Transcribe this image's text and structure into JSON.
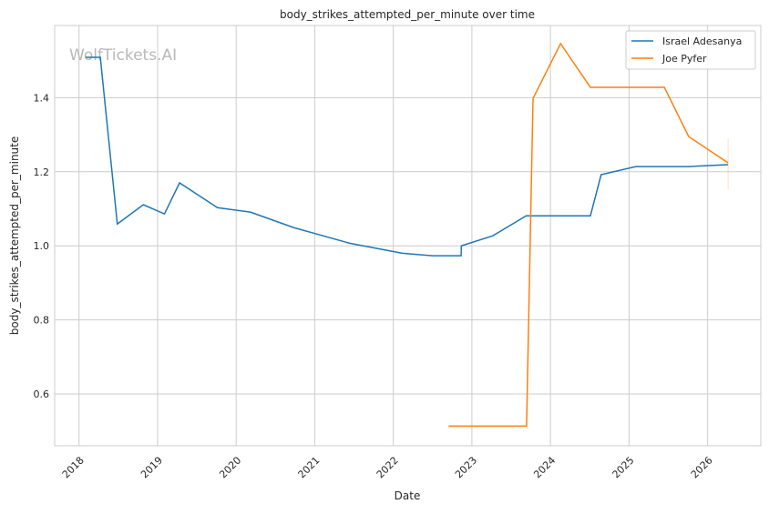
{
  "chart_data": {
    "type": "line",
    "title": "body_strikes_attempted_per_minute over time",
    "xlabel": "Date",
    "ylabel": "body_strikes_attempted_per_minute",
    "watermark": "WolfTickets.AI",
    "xlim": [
      "2017-09-10",
      "2026-09-05"
    ],
    "ylim": [
      0.46,
      1.595
    ],
    "x_ticks": [
      "2018",
      "2019",
      "2020",
      "2021",
      "2022",
      "2023",
      "2024",
      "2025",
      "2026"
    ],
    "y_ticks": [
      0.6,
      0.8,
      1.0,
      1.2,
      1.4
    ],
    "grid": true,
    "legend_position": "top-right",
    "series": [
      {
        "name": "Israel Adesanya",
        "color": "#1f77b4",
        "points": [
          [
            "2018-02-01",
            1.509
          ],
          [
            "2018-04-10",
            1.509
          ],
          [
            "2018-06-28",
            1.059
          ],
          [
            "2018-10-27",
            1.111
          ],
          [
            "2019-02-02",
            1.086
          ],
          [
            "2019-04-13",
            1.17
          ],
          [
            "2019-10-06",
            1.103
          ],
          [
            "2020-03-07",
            1.091
          ],
          [
            "2020-09-26",
            1.049
          ],
          [
            "2021-06-12",
            1.007
          ],
          [
            "2022-02-12",
            0.98
          ],
          [
            "2022-07-02",
            0.973
          ],
          [
            "2022-11-12",
            0.973
          ],
          [
            "2022-11-13",
            1.0
          ],
          [
            "2023-04-08",
            1.027
          ],
          [
            "2023-09-10",
            1.081
          ],
          [
            "2024-07-05",
            1.081
          ],
          [
            "2024-08-24",
            1.192
          ],
          [
            "2025-02-01",
            1.214
          ],
          [
            "2025-10-05",
            1.214
          ],
          [
            "2026-04-06",
            1.219
          ]
        ]
      },
      {
        "name": "Joe Pyfer",
        "color": "#ff7f0e",
        "points": [
          [
            "2022-09-15",
            0.513
          ],
          [
            "2023-09-12",
            0.513
          ],
          [
            "2023-10-12",
            1.398
          ],
          [
            "2024-02-17",
            1.546
          ],
          [
            "2024-07-05",
            1.428
          ],
          [
            "2025-06-14",
            1.428
          ],
          [
            "2025-10-05",
            1.295
          ],
          [
            "2026-04-06",
            1.224
          ]
        ],
        "error_bar": {
          "date": "2026-04-06",
          "low": 1.152,
          "high": 1.29
        }
      }
    ]
  }
}
